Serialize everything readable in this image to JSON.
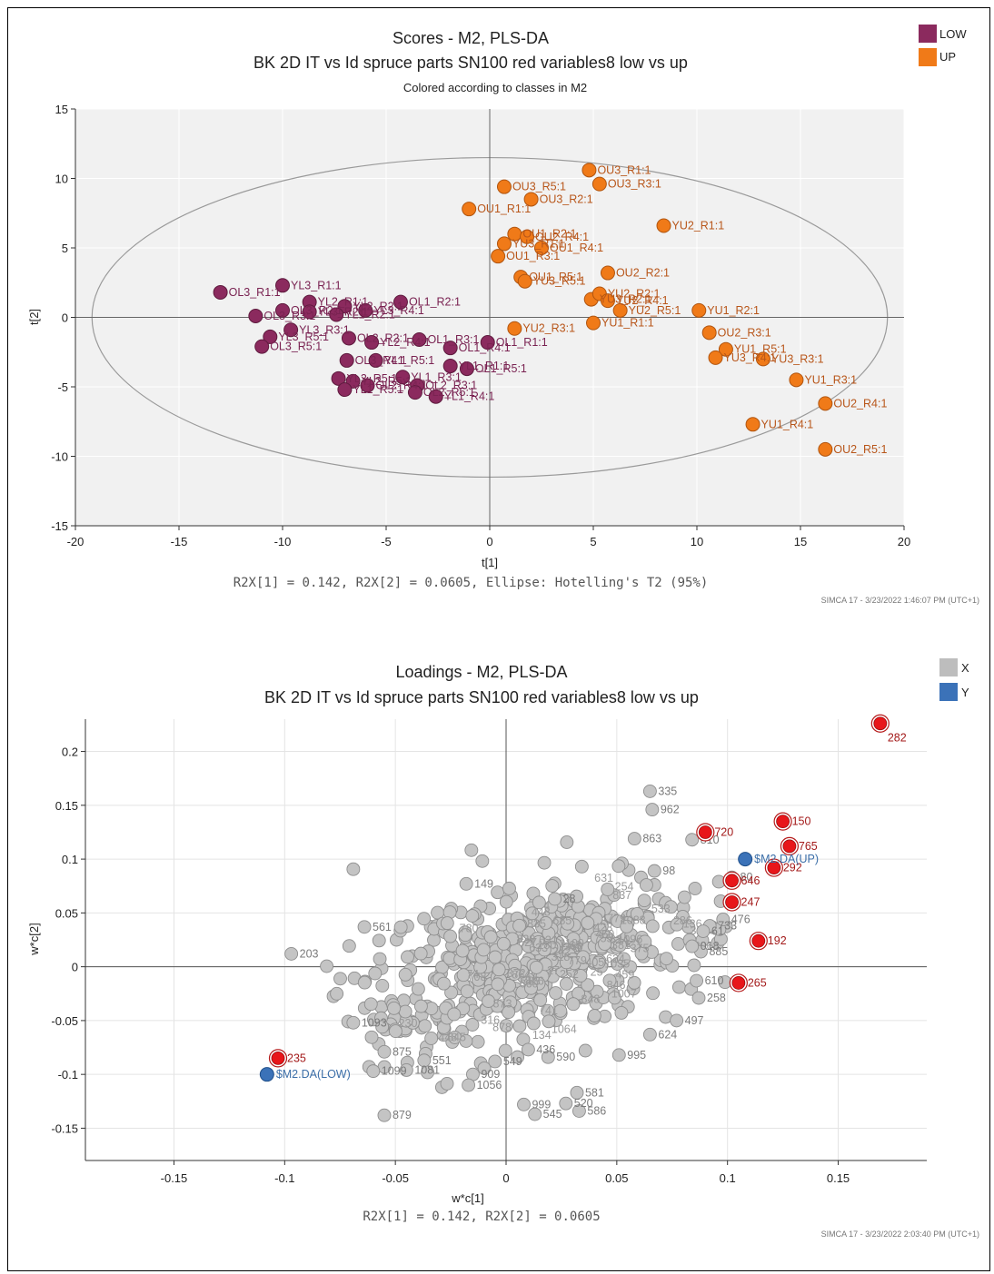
{
  "chart_data": [
    {
      "type": "scatter",
      "title": "Scores - M2, PLS-DA",
      "subtitle": "BK 2D IT vs Id spruce parts SN100 red variables8 low vs up",
      "subtitle2": "Colored according to classes in M2",
      "xlabel": "t[1]",
      "ylabel": "t[2]",
      "xlim": [
        -20,
        20
      ],
      "ylim": [
        -15,
        15
      ],
      "xticks": [
        -20,
        -15,
        -10,
        -5,
        0,
        5,
        10,
        15,
        20
      ],
      "yticks": [
        -15,
        -10,
        -5,
        0,
        5,
        10,
        15
      ],
      "stats_note": "R2X[1] = 0.142, R2X[2] = 0.0605, Ellipse: Hotelling's T2 (95%)",
      "footer": "SIMCA 17 - 3/23/2022 1:46:07 PM (UTC+1)",
      "legend": [
        {
          "name": "LOW",
          "color": "#8B2A5E"
        },
        {
          "name": "UP",
          "color": "#F07A18"
        }
      ],
      "ellipse": {
        "cx": 0,
        "cy": 0,
        "rx": 19.2,
        "ry": 11.5
      },
      "grid": true,
      "series": [
        {
          "name": "LOW",
          "color": "#8B2A5E",
          "label_color": "#7A2352",
          "points": [
            {
              "x": -13.0,
              "y": 1.8,
              "label": "OL3_R1:1"
            },
            {
              "x": -10.0,
              "y": 2.3,
              "label": "YL3_R1:1"
            },
            {
              "x": -8.7,
              "y": 1.1,
              "label": "YL2_R1:1"
            },
            {
              "x": -7.0,
              "y": 0.8,
              "label": "YL2_R2:1"
            },
            {
              "x": -4.3,
              "y": 1.1,
              "label": "OL1_R2:1"
            },
            {
              "x": -11.3,
              "y": 0.1,
              "label": "OL3_R3:1"
            },
            {
              "x": -10.0,
              "y": 0.5,
              "label": "OL3_R2:1"
            },
            {
              "x": -8.7,
              "y": 0.4,
              "label": "YL3_R2:1"
            },
            {
              "x": -7.4,
              "y": 0.2,
              "label": "YL1_R2:1"
            },
            {
              "x": -6.0,
              "y": 0.5,
              "label": "YL3_R4:1"
            },
            {
              "x": -10.6,
              "y": -1.4,
              "label": "YL3_R5:1"
            },
            {
              "x": -11.0,
              "y": -2.1,
              "label": "OL3_R5:1"
            },
            {
              "x": -9.6,
              "y": -0.9,
              "label": "YL3_R3:1"
            },
            {
              "x": -6.8,
              "y": -1.5,
              "label": "OL2_R2:1"
            },
            {
              "x": -5.7,
              "y": -1.8,
              "label": "YL2_R4:1"
            },
            {
              "x": -3.4,
              "y": -1.6,
              "label": "OL1_R3:1"
            },
            {
              "x": -6.9,
              "y": -3.1,
              "label": "OL3_R4:1"
            },
            {
              "x": -5.5,
              "y": -3.1,
              "label": "YL1_R5:1"
            },
            {
              "x": -4.2,
              "y": -4.3,
              "label": "YL1_R3:1"
            },
            {
              "x": -1.9,
              "y": -2.2,
              "label": "OL1_R4:1"
            },
            {
              "x": -0.1,
              "y": -1.8,
              "label": "OL1_R1:1"
            },
            {
              "x": -1.9,
              "y": -3.5,
              "label": "YL1_R1:1"
            },
            {
              "x": -1.1,
              "y": -3.7,
              "label": "OL1_R5:1"
            },
            {
              "x": -7.3,
              "y": -4.4,
              "label": "YL3_R5:1"
            },
            {
              "x": -6.6,
              "y": -4.6,
              "label": "YL2_R5:1"
            },
            {
              "x": -7.0,
              "y": -5.2,
              "label": "YL1_R5:1"
            },
            {
              "x": -5.9,
              "y": -4.9,
              "label": "OL2_R4:1"
            },
            {
              "x": -3.5,
              "y": -4.9,
              "label": "OL2_R3:1"
            },
            {
              "x": -2.6,
              "y": -5.7,
              "label": "YL1_R4:1"
            },
            {
              "x": -3.6,
              "y": -5.4,
              "label": "OL2_R5:1"
            }
          ]
        },
        {
          "name": "UP",
          "color": "#F07A18",
          "label_color": "#B8561A",
          "points": [
            {
              "x": 4.8,
              "y": 10.6,
              "label": "OU3_R1:1"
            },
            {
              "x": 0.7,
              "y": 9.4,
              "label": "OU3_R5:1"
            },
            {
              "x": 5.3,
              "y": 9.6,
              "label": "OU3_R3:1"
            },
            {
              "x": 2.0,
              "y": 8.5,
              "label": "OU3_R2:1"
            },
            {
              "x": -1.0,
              "y": 7.8,
              "label": "OU1_R1:1"
            },
            {
              "x": 8.4,
              "y": 6.6,
              "label": "YU2_R1:1"
            },
            {
              "x": 1.2,
              "y": 6.0,
              "label": "OU1_R2:1"
            },
            {
              "x": 0.7,
              "y": 5.3,
              "label": "YU3_R1:1"
            },
            {
              "x": 1.8,
              "y": 5.8,
              "label": "OU2_R4:1"
            },
            {
              "x": 2.5,
              "y": 5.0,
              "label": "OU1_R4:1"
            },
            {
              "x": 0.4,
              "y": 4.4,
              "label": "OU1_R3:1"
            },
            {
              "x": 1.5,
              "y": 2.9,
              "label": "OU1_R5:1"
            },
            {
              "x": 1.7,
              "y": 2.6,
              "label": "YU3_R5:1"
            },
            {
              "x": 5.7,
              "y": 3.2,
              "label": "OU2_R2:1"
            },
            {
              "x": 4.9,
              "y": 1.3,
              "label": "YU3_R2:1"
            },
            {
              "x": 5.3,
              "y": 1.7,
              "label": "YU2_R2:1"
            },
            {
              "x": 5.7,
              "y": 1.2,
              "label": "YU2_R4:1"
            },
            {
              "x": 6.3,
              "y": 0.5,
              "label": "YU2_R5:1"
            },
            {
              "x": 10.1,
              "y": 0.5,
              "label": "YU1_R2:1"
            },
            {
              "x": 1.2,
              "y": -0.8,
              "label": "YU2_R3:1"
            },
            {
              "x": 5.0,
              "y": -0.4,
              "label": "YU1_R1:1"
            },
            {
              "x": 10.6,
              "y": -1.1,
              "label": "OU2_R3:1"
            },
            {
              "x": 11.4,
              "y": -2.3,
              "label": "YU1_R5:1"
            },
            {
              "x": 10.9,
              "y": -2.9,
              "label": "YU3_R4:1"
            },
            {
              "x": 13.2,
              "y": -3.0,
              "label": "YU3_R3:1"
            },
            {
              "x": 14.8,
              "y": -4.5,
              "label": "YU1_R3:1"
            },
            {
              "x": 16.2,
              "y": -6.2,
              "label": "OU2_R4:1"
            },
            {
              "x": 12.7,
              "y": -7.7,
              "label": "YU1_R4:1"
            },
            {
              "x": 16.2,
              "y": -9.5,
              "label": "OU2_R5:1"
            }
          ]
        }
      ]
    },
    {
      "type": "scatter",
      "title": "Loadings - M2, PLS-DA",
      "subtitle": "BK 2D IT vs Id spruce parts SN100 red variables8 low vs up",
      "xlabel": "w*c[1]",
      "ylabel": "w*c[2]",
      "xlim": [
        -0.19,
        0.19
      ],
      "ylim": [
        -0.18,
        0.23
      ],
      "xticks": [
        -0.15,
        -0.1,
        -0.05,
        0,
        0.05,
        0.1,
        0.15
      ],
      "xtick_labels": [
        "-0.15",
        "-0.1",
        "-0.05",
        "0",
        "0.05",
        "0.1",
        "0.15"
      ],
      "yticks": [
        -0.15,
        -0.1,
        -0.05,
        0,
        0.05,
        0.1,
        0.15,
        0.2
      ],
      "ytick_labels": [
        "-0.15",
        "-0.1",
        "-0.05",
        "0",
        "0.05",
        "0.1",
        "0.15",
        "0.2"
      ],
      "stats_note": "R2X[1] = 0.142, R2X[2] = 0.0605",
      "footer": "SIMCA 17 - 3/23/2022 2:03:40 PM (UTC+1)",
      "legend": [
        {
          "name": "X",
          "color": "#BDBDBD"
        },
        {
          "name": "Y",
          "color": "#3B72B8"
        }
      ],
      "grid": true,
      "x_variables_labeled": [
        {
          "x": 0.065,
          "y": 0.163,
          "label": "335"
        },
        {
          "x": 0.066,
          "y": 0.146,
          "label": "962"
        },
        {
          "x": 0.058,
          "y": 0.119,
          "label": "863"
        },
        {
          "x": 0.084,
          "y": 0.118,
          "label": "810"
        },
        {
          "x": 0.067,
          "y": 0.089,
          "label": "98"
        },
        {
          "x": -0.064,
          "y": 0.037,
          "label": "561"
        },
        {
          "x": -0.097,
          "y": 0.012,
          "label": "203"
        },
        {
          "x": -0.018,
          "y": 0.077,
          "label": "149"
        },
        {
          "x": 0.022,
          "y": 0.063,
          "label": "28"
        },
        {
          "x": 0.102,
          "y": 0.083,
          "label": "80"
        },
        {
          "x": 0.098,
          "y": 0.044,
          "label": "476"
        },
        {
          "x": 0.092,
          "y": 0.038,
          "label": "733"
        },
        {
          "x": 0.089,
          "y": 0.033,
          "label": "61"
        },
        {
          "x": 0.088,
          "y": 0.014,
          "label": "885"
        },
        {
          "x": 0.084,
          "y": 0.019,
          "label": "018"
        },
        {
          "x": 0.086,
          "y": -0.013,
          "label": "610"
        },
        {
          "x": 0.087,
          "y": -0.029,
          "label": "258"
        },
        {
          "x": 0.077,
          "y": -0.05,
          "label": "497"
        },
        {
          "x": 0.065,
          "y": -0.063,
          "label": "624"
        },
        {
          "x": -0.069,
          "y": -0.052,
          "label": "1093"
        },
        {
          "x": 0.051,
          "y": -0.082,
          "label": "995"
        },
        {
          "x": 0.019,
          "y": -0.084,
          "label": "590"
        },
        {
          "x": 0.01,
          "y": -0.077,
          "label": "436"
        },
        {
          "x": -0.055,
          "y": -0.079,
          "label": "875"
        },
        {
          "x": -0.037,
          "y": -0.087,
          "label": "551"
        },
        {
          "x": -0.06,
          "y": -0.097,
          "label": "1099"
        },
        {
          "x": -0.045,
          "y": -0.096,
          "label": "1081"
        },
        {
          "x": -0.005,
          "y": -0.088,
          "label": "549"
        },
        {
          "x": -0.015,
          "y": -0.1,
          "label": "909"
        },
        {
          "x": -0.017,
          "y": -0.11,
          "label": "1056"
        },
        {
          "x": 0.008,
          "y": -0.128,
          "label": "999"
        },
        {
          "x": 0.032,
          "y": -0.117,
          "label": "581"
        },
        {
          "x": 0.027,
          "y": -0.127,
          "label": "520"
        },
        {
          "x": 0.033,
          "y": -0.134,
          "label": "586"
        },
        {
          "x": 0.013,
          "y": -0.137,
          "label": "545"
        },
        {
          "x": -0.055,
          "y": -0.138,
          "label": "879"
        }
      ],
      "highlighted_variables": [
        {
          "x": 0.169,
          "y": 0.226,
          "label": "282"
        },
        {
          "x": 0.125,
          "y": 0.135,
          "label": "150"
        },
        {
          "x": 0.09,
          "y": 0.125,
          "label": "720"
        },
        {
          "x": 0.128,
          "y": 0.112,
          "label": "765"
        },
        {
          "x": 0.121,
          "y": 0.092,
          "label": "292"
        },
        {
          "x": 0.102,
          "y": 0.08,
          "label": "646"
        },
        {
          "x": 0.102,
          "y": 0.06,
          "label": "247"
        },
        {
          "x": 0.114,
          "y": 0.024,
          "label": "192"
        },
        {
          "x": 0.105,
          "y": -0.015,
          "label": "265"
        },
        {
          "x": -0.103,
          "y": -0.085,
          "label": "235"
        }
      ],
      "y_variables": [
        {
          "x": 0.108,
          "y": 0.1,
          "label": "$M2.DA(UP)"
        },
        {
          "x": -0.108,
          "y": -0.1,
          "label": "$M2.DA(LOW)"
        }
      ]
    }
  ]
}
